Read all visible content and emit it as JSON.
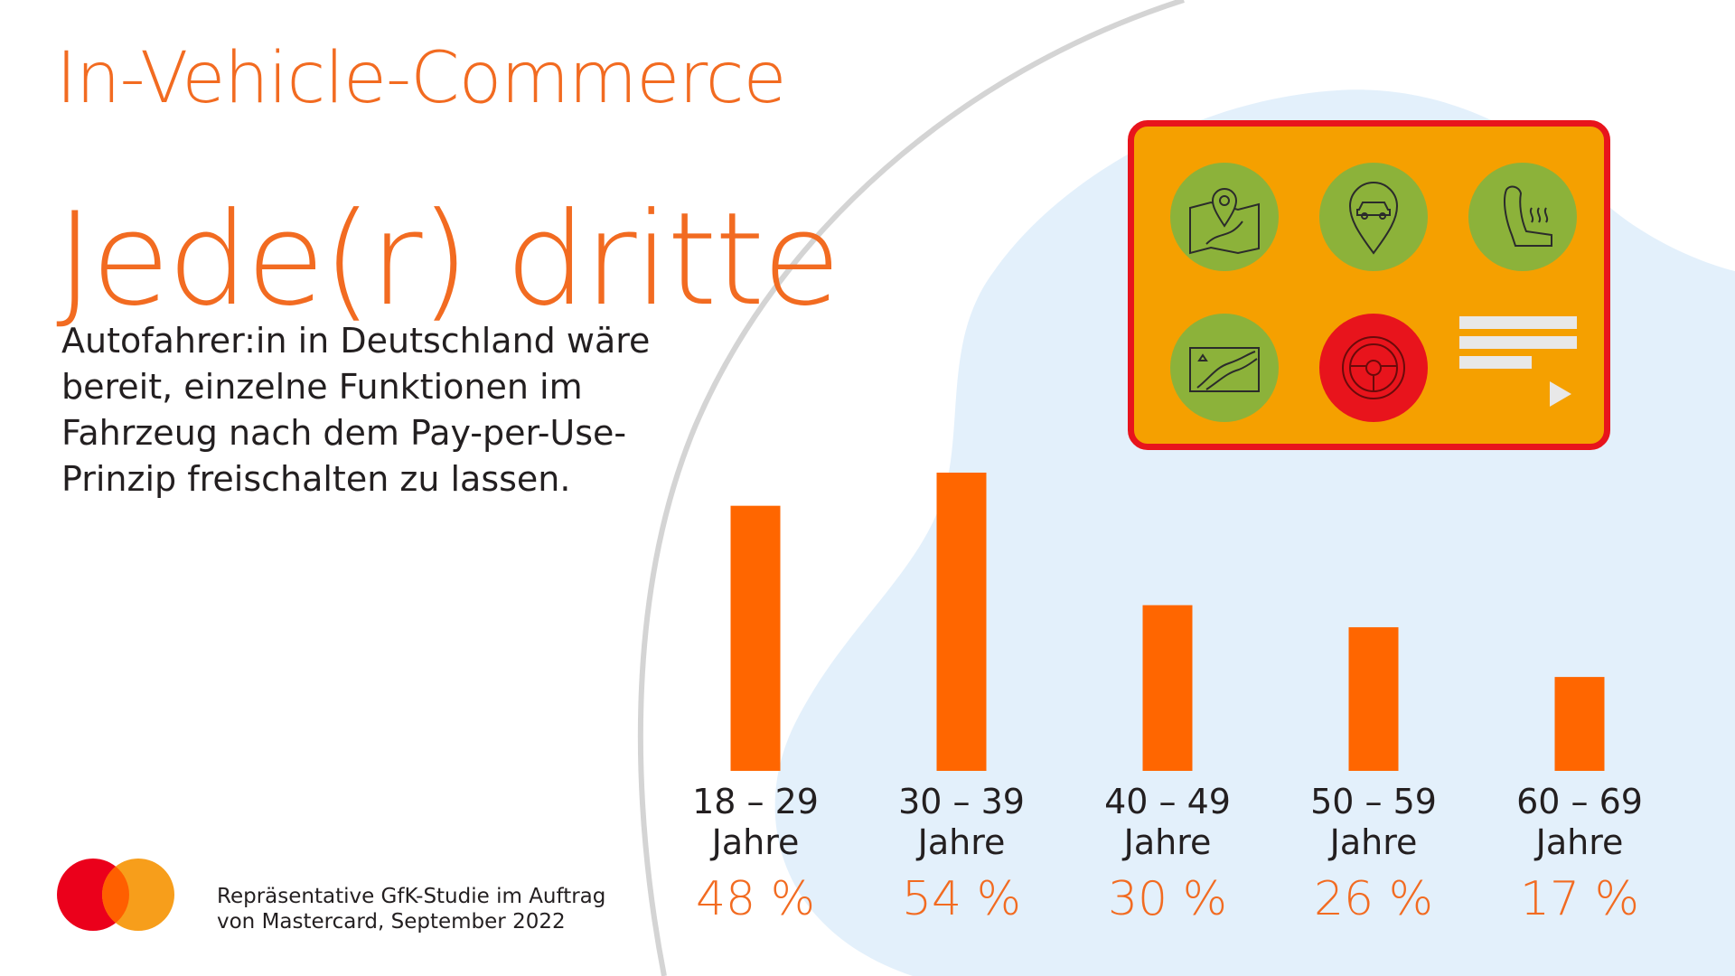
{
  "header": {
    "title": "In-Vehicle-Commerce",
    "headline": "Jede(r) dritte",
    "description_lines": [
      "Autofahrer:in in Deutschland wäre",
      "bereit, einzelne Funktionen im",
      "Fahrzeug nach dem Pay-per-Use-",
      "Prinzip freischalten zu lassen."
    ]
  },
  "footer": {
    "source_lines": [
      "Repräsentative GfK-Studie im Auftrag",
      "von Mastercard, September 2022"
    ],
    "logo": "mastercard-logo"
  },
  "colors": {
    "accent": "#f26b21",
    "bar": "#ff6600",
    "panel_bg": "#f5a000",
    "panel_border": "#e8141c",
    "icon_green": "#8cb23a",
    "icon_red": "#e8141c",
    "blob": "#e3f0fb"
  },
  "panel": {
    "icons": [
      "map-pin-icon",
      "location-car-icon",
      "heated-seat-icon",
      "map-route-icon",
      "steering-wheel-icon",
      "menu-play-icon"
    ]
  },
  "chart_data": {
    "type": "bar",
    "categories": [
      "18 – 29 Jahre",
      "30 – 39 Jahre",
      "40 – 49 Jahre",
      "50 – 59 Jahre",
      "60 – 69 Jahre"
    ],
    "category_lines": [
      [
        "18 – 29",
        "Jahre"
      ],
      [
        "30 – 39",
        "Jahre"
      ],
      [
        "40 – 49",
        "Jahre"
      ],
      [
        "50 – 59",
        "Jahre"
      ],
      [
        "60 – 69",
        "Jahre"
      ]
    ],
    "values": [
      48,
      54,
      30,
      26,
      17
    ],
    "value_labels": [
      "48 %",
      "54 %",
      "30 %",
      "26 %",
      "17 %"
    ],
    "unit": "%",
    "ylim": [
      0,
      60
    ],
    "grid": false,
    "legend": "none"
  }
}
